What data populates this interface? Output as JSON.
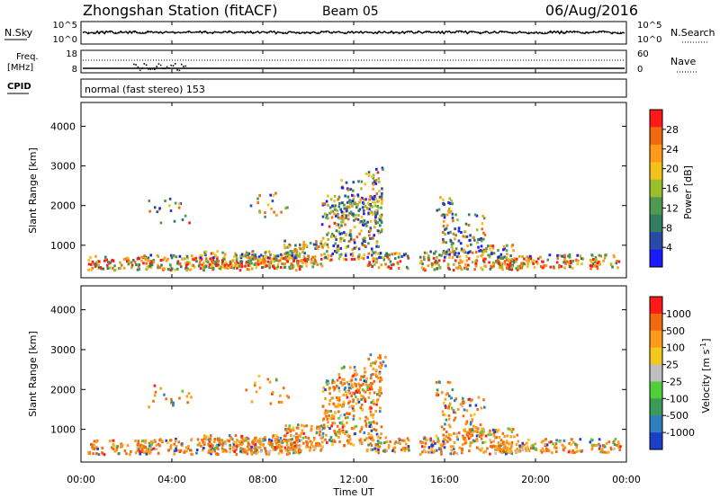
{
  "header": {
    "title": "Zhongshan Station (fitACF)",
    "beam": "Beam 05",
    "date": "06/Aug/2016"
  },
  "status_panels": {
    "nsky_label": "N.Sky",
    "nsky_ticks": [
      "10^5",
      "10^0"
    ],
    "nsearch_label": "N.Search",
    "nsearch_ticks": [
      "10^5",
      "10^0"
    ],
    "freq_label_top": "Freq.",
    "freq_label_bottom": "[MHz]",
    "freq_ticks": [
      "18",
      "8"
    ],
    "nave_label": "Nave",
    "nave_ticks": [
      "60",
      "0"
    ],
    "cpid_label": "CPID",
    "cpid_text": "normal (fast stereo) 153"
  },
  "colors": {
    "power_scale": [
      "#1a1aff",
      "#2a4aa8",
      "#2f7f5e",
      "#4f9a4f",
      "#9bbf2a",
      "#f2c21a",
      "#ff9a1a",
      "#f26a10",
      "#ff1a1a"
    ],
    "velocity_scale": [
      "#1a3fc8",
      "#2f7fbf",
      "#3a9a5a",
      "#4fd03a",
      "#bfbfbf",
      "#f2c81a",
      "#ff9a1a",
      "#f26a10",
      "#ff1a1a"
    ]
  },
  "chart_data": [
    {
      "type": "heatmap",
      "name": "power",
      "ylabel": "Slant Range [km]",
      "yticks": [
        "4000",
        "3000",
        "2000",
        "1000"
      ],
      "ylim": [
        180,
        4600
      ],
      "colorbar_label": "Power [dB]",
      "colorbar_ticks": [
        "28",
        "24",
        "20",
        "16",
        "12",
        "8",
        "4"
      ],
      "colorbar_range": [
        0,
        32
      ]
    },
    {
      "type": "heatmap",
      "name": "velocity",
      "ylabel": "Slant Range [km]",
      "yticks": [
        "4000",
        "3000",
        "2000",
        "1000"
      ],
      "ylim": [
        180,
        4600
      ],
      "colorbar_label": "Velocity [m s^-1]",
      "colorbar_ticks": [
        "1000",
        "500",
        "100",
        "25",
        "-25",
        "-100",
        "-500",
        "-1000"
      ]
    }
  ],
  "xaxis": {
    "label": "Time UT",
    "ticks": [
      "00:00",
      "04:00",
      "08:00",
      "12:00",
      "16:00",
      "20:00",
      "00:00"
    ]
  }
}
